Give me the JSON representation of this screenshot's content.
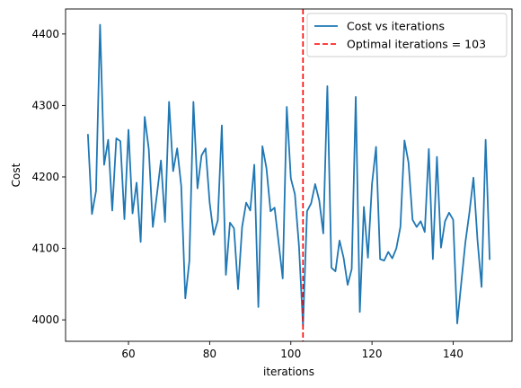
{
  "chart_data": {
    "type": "line",
    "xlabel": "iterations",
    "ylabel": "Cost",
    "xlim": [
      44.5,
      154.5
    ],
    "ylim": [
      3970,
      4435
    ],
    "xticks": [
      60,
      80,
      100,
      120,
      140
    ],
    "yticks": [
      4000,
      4100,
      4200,
      4300,
      4400
    ],
    "grid": false,
    "legend_position": "top-right",
    "series": [
      {
        "name": "Cost vs iterations",
        "color": "#1f77b4",
        "x": [
          50,
          51,
          52,
          53,
          54,
          55,
          56,
          57,
          58,
          59,
          60,
          61,
          62,
          63,
          64,
          65,
          66,
          67,
          68,
          69,
          70,
          71,
          72,
          73,
          74,
          75,
          76,
          77,
          78,
          79,
          80,
          81,
          82,
          83,
          84,
          85,
          86,
          87,
          88,
          89,
          90,
          91,
          92,
          93,
          94,
          95,
          96,
          97,
          98,
          99,
          100,
          101,
          102,
          103,
          104,
          105,
          106,
          107,
          108,
          109,
          110,
          111,
          112,
          113,
          114,
          115,
          116,
          117,
          118,
          119,
          120,
          121,
          122,
          123,
          124,
          125,
          126,
          127,
          128,
          129,
          130,
          131,
          132,
          133,
          134,
          135,
          136,
          137,
          138,
          139,
          140,
          141,
          142,
          143,
          144,
          145,
          146,
          147,
          148,
          149
        ],
        "y": [
          4260,
          4148,
          4180,
          4413,
          4217,
          4252,
          4153,
          4254,
          4250,
          4141,
          4266,
          4149,
          4192,
          4109,
          4284,
          4239,
          4130,
          4175,
          4223,
          4137,
          4305,
          4208,
          4240,
          4187,
          4030,
          4082,
          4305,
          4184,
          4230,
          4240,
          4164,
          4119,
          4139,
          4272,
          4063,
          4136,
          4128,
          4043,
          4130,
          4164,
          4153,
          4217,
          4018,
          4243,
          4212,
          4152,
          4157,
          4108,
          4058,
          4298,
          4198,
          4176,
          4104,
          3992,
          4152,
          4163,
          4190,
          4167,
          4121,
          4327,
          4073,
          4068,
          4111,
          4087,
          4049,
          4071,
          4312,
          4011,
          4158,
          4087,
          4190,
          4242,
          4085,
          4083,
          4095,
          4086,
          4100,
          4130,
          4251,
          4220,
          4140,
          4130,
          4138,
          4123,
          4239,
          4085,
          4228,
          4101,
          4138,
          4150,
          4140,
          3995,
          4052,
          4108,
          4150,
          4199,
          4111,
          4046,
          4252,
          4084
        ]
      }
    ],
    "reference_line": {
      "name": "Optimal iterations = 103",
      "x": 103,
      "color": "#ff0000",
      "style": "dashed"
    }
  }
}
